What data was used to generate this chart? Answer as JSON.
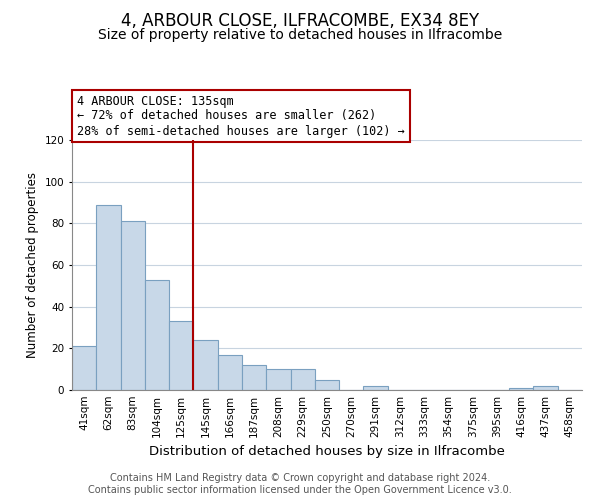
{
  "title": "4, ARBOUR CLOSE, ILFRACOMBE, EX34 8EY",
  "subtitle": "Size of property relative to detached houses in Ilfracombe",
  "xlabel": "Distribution of detached houses by size in Ilfracombe",
  "ylabel": "Number of detached properties",
  "categories": [
    "41sqm",
    "62sqm",
    "83sqm",
    "104sqm",
    "125sqm",
    "145sqm",
    "166sqm",
    "187sqm",
    "208sqm",
    "229sqm",
    "250sqm",
    "270sqm",
    "291sqm",
    "312sqm",
    "333sqm",
    "354sqm",
    "375sqm",
    "395sqm",
    "416sqm",
    "437sqm",
    "458sqm"
  ],
  "values": [
    21,
    89,
    81,
    53,
    33,
    24,
    17,
    12,
    10,
    10,
    5,
    0,
    2,
    0,
    0,
    0,
    0,
    0,
    1,
    2,
    0
  ],
  "bar_color": "#c8d8e8",
  "bar_edge_color": "#7aa0c0",
  "vline_color": "#aa0000",
  "vline_x": 4.5,
  "annotation_box_text": "4 ARBOUR CLOSE: 135sqm\n← 72% of detached houses are smaller (262)\n28% of semi-detached houses are larger (102) →",
  "annotation_box_edge_color": "#aa0000",
  "ylim": [
    0,
    120
  ],
  "yticks": [
    0,
    20,
    40,
    60,
    80,
    100,
    120
  ],
  "footer_text": "Contains HM Land Registry data © Crown copyright and database right 2024.\nContains public sector information licensed under the Open Government Licence v3.0.",
  "background_color": "#ffffff",
  "grid_color": "#c8d4e0",
  "title_fontsize": 12,
  "subtitle_fontsize": 10,
  "xlabel_fontsize": 9.5,
  "ylabel_fontsize": 8.5,
  "tick_fontsize": 7.5,
  "annotation_fontsize": 8.5,
  "footer_fontsize": 7
}
